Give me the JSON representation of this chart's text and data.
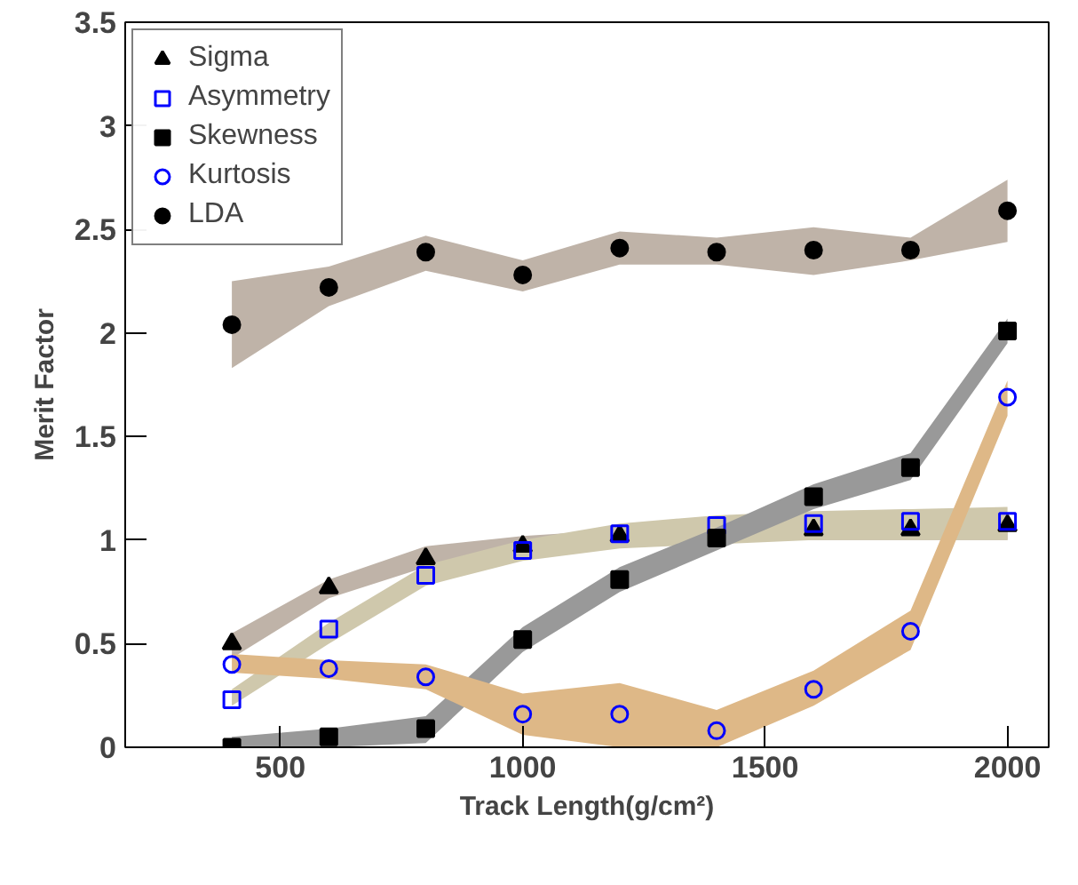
{
  "chart_data": {
    "type": "scatter",
    "xlabel": "Track Length(g/cm²)",
    "ylabel": "Merit Factor",
    "xlim": [
      180,
      2085
    ],
    "ylim": [
      0,
      3.5
    ],
    "xticks": [
      500,
      1000,
      1500,
      2000
    ],
    "yticks": [
      0,
      0.5,
      1,
      1.5,
      2,
      2.5,
      3,
      3.5
    ],
    "grid": false,
    "legend": "top left",
    "x": [
      400,
      600,
      800,
      1000,
      1200,
      1400,
      1600,
      1800,
      2000
    ],
    "series": [
      {
        "name": "Sigma",
        "color": "#bfb3a8",
        "colors": [
          "#000000",
          "#000000",
          "#000000",
          "#000000",
          "#000000",
          "#000000",
          "#000000",
          "#000000",
          "#000000"
        ],
        "marker": "triangle",
        "values": [
          0.5,
          0.77,
          0.91,
          0.97,
          1.02,
          null,
          1.05,
          1.05,
          1.07
        ],
        "lower": [
          0.43,
          0.72,
          0.87,
          0.94,
          0.98,
          1.0,
          1.0,
          1.0,
          1.0
        ],
        "upper": [
          0.55,
          0.81,
          0.97,
          1.02,
          1.05,
          1.07,
          1.08,
          1.08,
          1.1
        ]
      },
      {
        "name": "Asymmetry",
        "color": "#cfc8ac",
        "colors": [
          "#0000ff",
          "#0000ff",
          "#0000ff",
          "#0000ff",
          "#0000ff",
          "#0000ff",
          "#0000ff",
          "#0000ff",
          "#0000ff"
        ],
        "marker": "square",
        "values": [
          0.23,
          0.57,
          0.83,
          0.95,
          1.03,
          1.07,
          1.08,
          1.09,
          1.09
        ],
        "lower": [
          0.2,
          0.5,
          0.78,
          0.9,
          0.96,
          0.98,
          1.0,
          1.0,
          1.0
        ],
        "upper": [
          0.28,
          0.6,
          0.88,
          1.0,
          1.08,
          1.12,
          1.14,
          1.15,
          1.16
        ]
      },
      {
        "name": "Skewness",
        "color": "#999999",
        "colors": [
          "#000000",
          "#000000",
          "#000000",
          "#000000",
          "#000000",
          "#000000",
          "#000000",
          "#000000",
          "#000000"
        ],
        "marker": "square",
        "values": [
          0.0,
          0.05,
          0.09,
          0.52,
          0.81,
          1.01,
          1.21,
          1.35,
          2.01
        ],
        "lower": [
          0,
          0,
          0.02,
          0.46,
          0.75,
          0.95,
          1.15,
          1.29,
          1.95
        ],
        "upper": [
          0.05,
          0.09,
          0.15,
          0.58,
          0.87,
          1.06,
          1.27,
          1.42,
          2.07
        ]
      },
      {
        "name": "Kurtosis",
        "color": "#deb887",
        "colors": [
          "#0000ff",
          "#0000ff",
          "#0000ff",
          "#0000ff",
          "#0000ff",
          "#0000ff",
          "#0000ff",
          "#0000ff",
          "#0000ff"
        ],
        "marker": "circle",
        "values": [
          0.4,
          0.38,
          0.34,
          0.16,
          0.16,
          0.08,
          0.28,
          0.56,
          1.69
        ],
        "lower": [
          0.36,
          0.33,
          0.28,
          0.06,
          0.0,
          0.0,
          0.2,
          0.47,
          1.6
        ],
        "upper": [
          0.45,
          0.42,
          0.4,
          0.26,
          0.31,
          0.18,
          0.37,
          0.66,
          1.77
        ]
      },
      {
        "name": "LDA",
        "color": "#bfb3a8",
        "colors": [
          "#000000",
          "#000000",
          "#000000",
          "#000000",
          "#000000",
          "#000000",
          "#000000",
          "#000000",
          "#000000"
        ],
        "marker": "circle",
        "values": [
          2.04,
          2.22,
          2.39,
          2.28,
          2.41,
          2.39,
          2.4,
          2.4,
          2.59
        ],
        "lower": [
          1.83,
          2.13,
          2.3,
          2.2,
          2.33,
          2.33,
          2.28,
          2.35,
          2.44
        ],
        "upper": [
          2.25,
          2.32,
          2.47,
          2.35,
          2.49,
          2.46,
          2.51,
          2.46,
          2.74
        ]
      }
    ]
  }
}
